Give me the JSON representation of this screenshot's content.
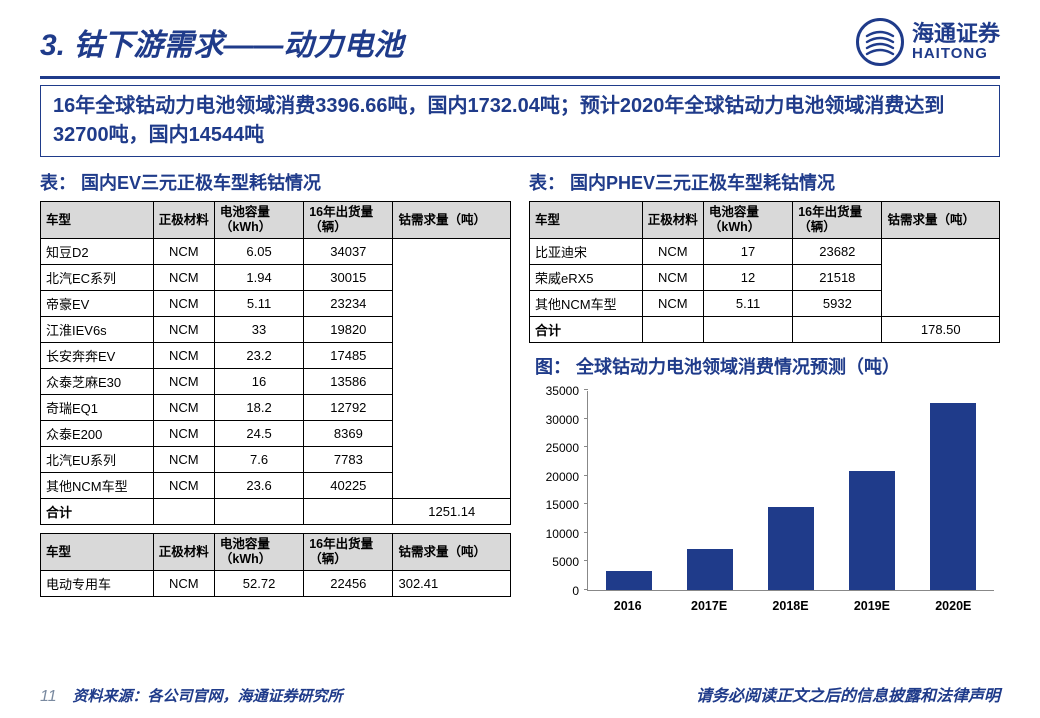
{
  "header": {
    "title": "3. 钴下游需求——动力电池",
    "logo": {
      "cn": "海通证券",
      "en": "HAITONG",
      "color": "#1f3b8a"
    }
  },
  "summary": "16年全球钴动力电池领域消费3396.66吨，国内1732.04吨；预计2020年全球钴动力电池领域消费达到32700吨，国内14544吨",
  "tableA": {
    "caption": "表：  国内EV三元正极车型耗钴情况",
    "columns": [
      "车型",
      "正极材料",
      "电池容量（kWh）",
      "16年出货量（辆）",
      "钴需求量（吨）"
    ],
    "rows": [
      [
        "知豆D2",
        "NCM",
        "6.05",
        "34037",
        ""
      ],
      [
        "北汽EC系列",
        "NCM",
        "1.94",
        "30015",
        ""
      ],
      [
        "帝豪EV",
        "NCM",
        "5.11",
        "23234",
        ""
      ],
      [
        "江淮IEV6s",
        "NCM",
        "33",
        "19820",
        ""
      ],
      [
        "长安奔奔EV",
        "NCM",
        "23.2",
        "17485",
        ""
      ],
      [
        "众泰芝麻E30",
        "NCM",
        "16",
        "13586",
        ""
      ],
      [
        "奇瑞EQ1",
        "NCM",
        "18.2",
        "12792",
        ""
      ],
      [
        "众泰E200",
        "NCM",
        "24.5",
        "8369",
        ""
      ],
      [
        "北汽EU系列",
        "NCM",
        "7.6",
        "7783",
        ""
      ],
      [
        "其他NCM车型",
        "NCM",
        "23.6",
        "40225",
        ""
      ]
    ],
    "total_label": "合计",
    "total_value": "1251.14"
  },
  "tableB": {
    "columns": [
      "车型",
      "正极材料",
      "电池容量（kWh）",
      "16年出货量（辆）",
      "钴需求量（吨）"
    ],
    "rows": [
      [
        "电动专用车",
        "NCM",
        "52.72",
        "22456",
        "302.41"
      ]
    ]
  },
  "tableC": {
    "caption": "表：  国内PHEV三元正极车型耗钴情况",
    "columns": [
      "车型",
      "正极材料",
      "电池容量（kWh）",
      "16年出货量（辆）",
      "钴需求量（吨）"
    ],
    "rows": [
      [
        "比亚迪宋",
        "NCM",
        "17",
        "23682",
        ""
      ],
      [
        "荣威eRX5",
        "NCM",
        "12",
        "21518",
        ""
      ],
      [
        "其他NCM车型",
        "NCM",
        "5.11",
        "5932",
        ""
      ]
    ],
    "total_label": "合计",
    "total_value": "178.50"
  },
  "chart": {
    "caption": "图：  全球钴动力电池领域消费情况预测（吨）",
    "type": "bar",
    "categories": [
      "2016",
      "2017E",
      "2018E",
      "2019E",
      "2020E"
    ],
    "values": [
      3397,
      7200,
      14500,
      20800,
      32700
    ],
    "ylim": [
      0,
      35000
    ],
    "ytick_step": 5000,
    "bar_color": "#1f3b8a",
    "axis_color": "#888888",
    "label_fontsize": 12
  },
  "footer": {
    "page": "11",
    "source": "资料来源：各公司官网，海通证券研究所",
    "disclaimer": "请务必阅读正文之后的信息披露和法律声明"
  },
  "colors": {
    "primary": "#1f3b8a",
    "header_grey": "#d9d9d9"
  }
}
